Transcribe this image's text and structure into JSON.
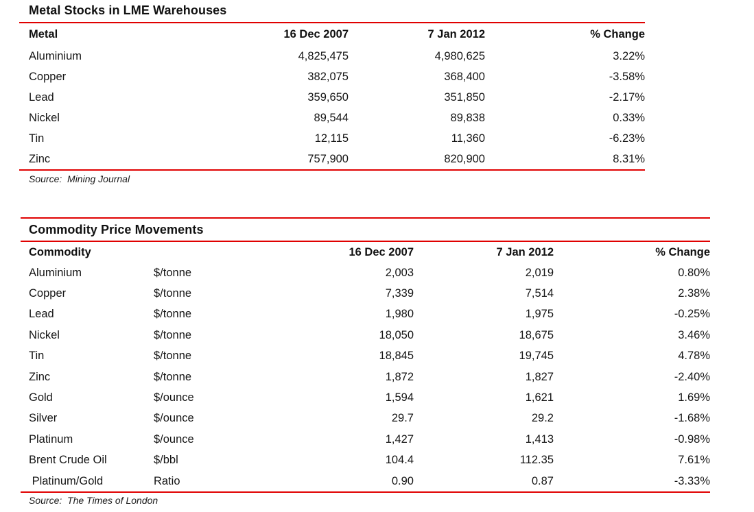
{
  "page": {
    "background": "#ffffff",
    "text_color": "#151515",
    "rule_color": "#e00000"
  },
  "metal_stocks": {
    "title": "Metal Stocks in LME Warehouses",
    "columns": {
      "metal": "Metal",
      "date1": "16 Dec 2007",
      "date2": "7 Jan 2012",
      "change": "% Change"
    },
    "rows": [
      {
        "name": "Aluminium",
        "date1": "4,825,475",
        "date2": "4,980,625",
        "change": "3.22%"
      },
      {
        "name": "Copper",
        "date1": "382,075",
        "date2": "368,400",
        "change": "-3.58%"
      },
      {
        "name": "Lead",
        "date1": "359,650",
        "date2": "351,850",
        "change": "-2.17%"
      },
      {
        "name": "Nickel",
        "date1": "89,544",
        "date2": "89,838",
        "change": "0.33%"
      },
      {
        "name": "Tin",
        "date1": "12,115",
        "date2": "11,360",
        "change": "-6.23%"
      },
      {
        "name": "Zinc",
        "date1": "757,900",
        "date2": "820,900",
        "change": "8.31%"
      }
    ],
    "source": "Source:  Mining Journal"
  },
  "commodity_prices": {
    "title": "Commodity Price Movements",
    "columns": {
      "commodity": "Commodity",
      "unit": "",
      "date1": "16 Dec 2007",
      "date2": "7 Jan 2012",
      "change": "% Change"
    },
    "rows": [
      {
        "name": "Aluminium",
        "unit": "$/tonne",
        "date1": "2,003",
        "date2": "2,019",
        "change": "0.80%"
      },
      {
        "name": "Copper",
        "unit": "$/tonne",
        "date1": "7,339",
        "date2": "7,514",
        "change": "2.38%"
      },
      {
        "name": "Lead",
        "unit": "$/tonne",
        "date1": "1,980",
        "date2": "1,975",
        "change": "-0.25%"
      },
      {
        "name": "Nickel",
        "unit": "$/tonne",
        "date1": "18,050",
        "date2": "18,675",
        "change": "3.46%"
      },
      {
        "name": "Tin",
        "unit": "$/tonne",
        "date1": "18,845",
        "date2": "19,745",
        "change": "4.78%"
      },
      {
        "name": "Zinc",
        "unit": "$/tonne",
        "date1": "1,872",
        "date2": "1,827",
        "change": "-2.40%"
      },
      {
        "name": "Gold",
        "unit": "$/ounce",
        "date1": "1,594",
        "date2": "1,621",
        "change": "1.69%"
      },
      {
        "name": "Silver",
        "unit": "$/ounce",
        "date1": "29.7",
        "date2": "29.2",
        "change": "-1.68%"
      },
      {
        "name": "Platinum",
        "unit": "$/ounce",
        "date1": "1,427",
        "date2": "1,413",
        "change": "-0.98%"
      },
      {
        "name": "Brent Crude Oil",
        "unit": "$/bbl",
        "date1": "104.4",
        "date2": "112.35",
        "change": "7.61%"
      },
      {
        "name": " Platinum/Gold",
        "unit": "Ratio",
        "date1": "0.90",
        "date2": "0.87",
        "change": "-3.33%"
      }
    ],
    "source": "Source:  The Times of London"
  }
}
